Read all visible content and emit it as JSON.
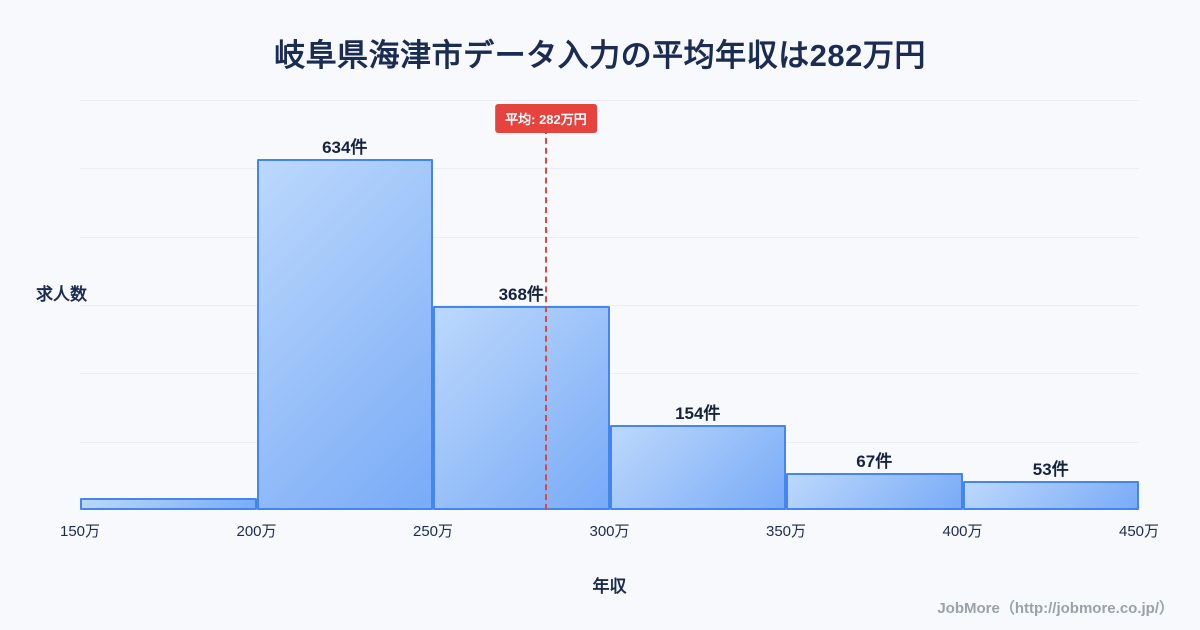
{
  "title": "岐阜県海津市データ入力の平均年収は282万円",
  "ylabel": "求人数",
  "xlabel": "年収",
  "footer": "JobMore（http://jobmore.co.jp/）",
  "average_badge_label": "平均: 282万円",
  "colors": {
    "background": "#f7f9fc",
    "bar_fill_light": "#bcd8fc",
    "bar_fill_dark": "#79abf7",
    "bar_border": "#4386ef",
    "average_line": "#e5433e",
    "title_text": "#1b2c52",
    "footer_text": "#99a1ac"
  },
  "chart_data": {
    "type": "bar",
    "title": "岐阜県海津市データ入力の平均年収は282万円",
    "xlabel": "年収",
    "ylabel": "求人数",
    "bin_edges": [
      150,
      200,
      250,
      300,
      350,
      400,
      450
    ],
    "bin_edge_labels": [
      "150万",
      "200万",
      "250万",
      "300万",
      "350万",
      "400万",
      "450万"
    ],
    "values": [
      22,
      634,
      368,
      154,
      67,
      53
    ],
    "bar_labels": [
      "",
      "634件",
      "368件",
      "154件",
      "67件",
      "53件"
    ],
    "average_value": 282,
    "ylim": [
      0,
      740
    ],
    "grid": true,
    "grid_divisions": 6,
    "legend_position": "none"
  }
}
